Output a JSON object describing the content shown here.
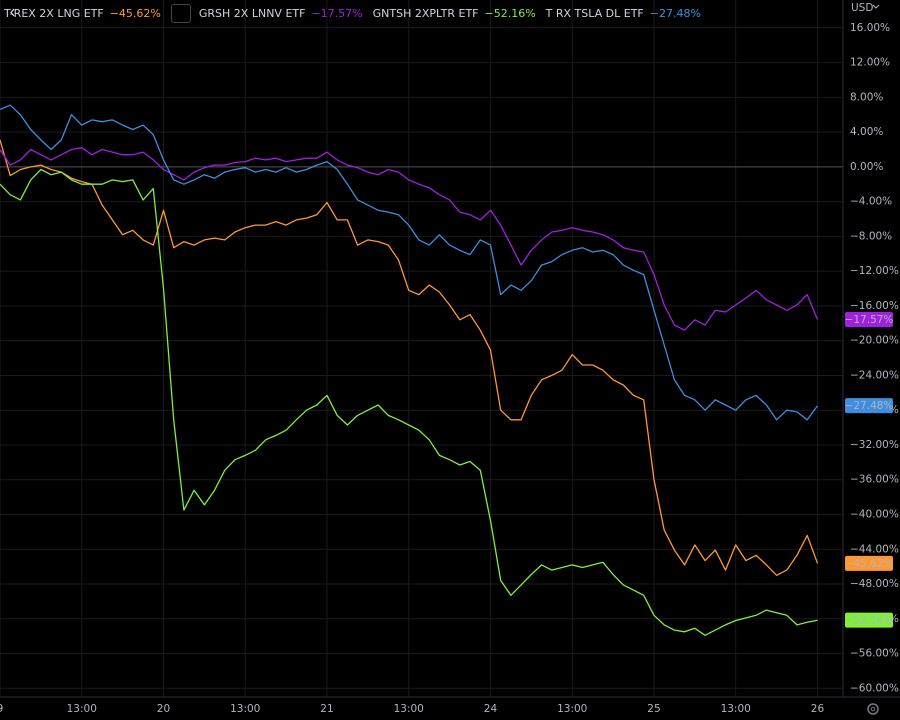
{
  "chart_data": {
    "type": "line",
    "y_axis_label": "USD",
    "grid": true,
    "xlim": [
      0,
      82.5
    ],
    "ylim": [
      -61,
      19.2
    ],
    "xticks": [
      {
        "value": 0,
        "label": "9"
      },
      {
        "value": 8,
        "label": "13:00"
      },
      {
        "value": 16,
        "label": "20"
      },
      {
        "value": 24,
        "label": "13:00"
      },
      {
        "value": 32,
        "label": "21"
      },
      {
        "value": 40,
        "label": "13:00"
      },
      {
        "value": 48,
        "label": "24"
      },
      {
        "value": 56,
        "label": "13:00"
      },
      {
        "value": 64,
        "label": "25"
      },
      {
        "value": 72,
        "label": "13:00"
      },
      {
        "value": 80,
        "label": "26"
      }
    ],
    "yticks": [
      {
        "value": 16,
        "label": "16.00%"
      },
      {
        "value": 12,
        "label": "12.00%"
      },
      {
        "value": 8,
        "label": "8.00%"
      },
      {
        "value": 4,
        "label": "4.00%"
      },
      {
        "value": 0,
        "label": "0.00%"
      },
      {
        "value": -4,
        "label": "−4.00%"
      },
      {
        "value": -8,
        "label": "−8.00%"
      },
      {
        "value": -12,
        "label": "−12.00%"
      },
      {
        "value": -16,
        "label": "−16.00%"
      },
      {
        "value": -20,
        "label": "−20.00%"
      },
      {
        "value": -24,
        "label": "−24.00%"
      },
      {
        "value": -28,
        "label": "−28.00%"
      },
      {
        "value": -32,
        "label": "−32.00%"
      },
      {
        "value": -36,
        "label": "−36.00%"
      },
      {
        "value": -40,
        "label": "−40.00%"
      },
      {
        "value": -44,
        "label": "−44.00%"
      },
      {
        "value": -48,
        "label": "−48.00%"
      },
      {
        "value": -52,
        "label": "−52.00%"
      },
      {
        "value": -56,
        "label": "−56.00%"
      },
      {
        "value": -60,
        "label": "−60.00%"
      }
    ],
    "x": [
      0,
      1,
      2,
      3,
      4,
      5,
      6,
      7,
      8,
      9,
      10,
      11,
      12,
      13,
      14,
      15,
      16,
      17,
      18,
      19,
      20,
      21,
      22,
      23,
      24,
      25,
      26,
      27,
      28,
      29,
      30,
      31,
      32,
      33,
      34,
      35,
      36,
      37,
      38,
      39,
      40,
      41,
      42,
      43,
      44,
      45,
      46,
      47,
      48,
      49,
      50,
      51,
      52,
      53,
      54,
      55,
      56,
      57,
      58,
      59,
      60,
      61,
      62,
      63,
      64,
      65,
      66,
      67,
      68,
      69,
      70,
      71,
      72,
      73,
      74,
      75,
      76,
      77,
      78,
      79,
      80
    ],
    "series": [
      {
        "name": "T-REX 2X LNG ETF",
        "color": "#ff9830",
        "values": [
          3.1,
          -1,
          -0.3,
          0,
          0.2,
          -0.3,
          -0.6,
          -1.3,
          -1.7,
          -2,
          -4.4,
          -6.1,
          -7.8,
          -7.3,
          -8.4,
          -9,
          -5,
          -9.3,
          -8.6,
          -9,
          -8.4,
          -8.2,
          -8.4,
          -7.5,
          -7,
          -6.7,
          -6.7,
          -6.3,
          -6.7,
          -6.1,
          -5.9,
          -5.5,
          -4.1,
          -6.1,
          -6.1,
          -9,
          -8.4,
          -8.6,
          -9,
          -10.7,
          -14.2,
          -14.7,
          -13.6,
          -14.4,
          -15.9,
          -17.6,
          -17,
          -18.8,
          -21.1,
          -28,
          -29.1,
          -29.1,
          -26.3,
          -24.5,
          -24,
          -23.4,
          -21.6,
          -22.8,
          -22.8,
          -23.4,
          -24.5,
          -25.1,
          -26.3,
          -26.8,
          -36,
          -41.8,
          -44.1,
          -45.8,
          -43.5,
          -45.3,
          -44.1,
          -46.4,
          -43.5,
          -45.3,
          -44.7,
          -45.8,
          -47,
          -46.4,
          -44.7,
          -42.4,
          -45.62
        ],
        "value_labels": [
          null,
          null,
          null,
          null,
          null,
          null,
          null,
          null,
          null,
          null,
          null,
          null,
          null,
          null,
          null,
          null,
          null,
          null,
          null,
          null,
          null,
          null,
          null,
          null,
          null,
          null,
          null,
          null,
          null,
          null,
          null,
          null,
          null,
          null,
          null,
          null,
          null,
          null,
          null,
          null,
          null,
          null,
          null,
          null,
          null,
          null,
          null,
          null,
          null,
          null,
          null,
          null,
          null,
          null,
          null,
          null,
          null,
          null,
          null,
          null,
          null,
          null,
          null,
          null,
          null,
          null,
          null,
          null,
          null,
          null,
          null,
          null,
          null,
          null,
          null,
          null,
          null,
          null,
          null,
          null,
          "−45.62%"
        ]
      },
      {
        "name": "GRSH 2X LNNV ETF",
        "color": "#a020e0",
        "values": [
          2,
          0.2,
          0.8,
          2,
          1.4,
          0.8,
          1.4,
          2,
          2.2,
          1.4,
          2,
          1.7,
          1.4,
          1.4,
          1.7,
          0.8,
          -0.3,
          -0.9,
          -1.5,
          -0.6,
          -0.1,
          0.2,
          0.2,
          0.5,
          0.6,
          1,
          0.8,
          1,
          0.6,
          0.8,
          1,
          1,
          1.7,
          0.8,
          0.2,
          -0.1,
          -0.6,
          -0.9,
          -0.3,
          -0.6,
          -1.5,
          -2,
          -2.4,
          -3.2,
          -3.8,
          -5.2,
          -5.5,
          -6.1,
          -5,
          -6.7,
          -9,
          -11.3,
          -9.6,
          -8.4,
          -7.5,
          -7.3,
          -7,
          -7.3,
          -7.5,
          -7.8,
          -8.4,
          -9.3,
          -9.6,
          -9.8,
          -12.4,
          -15.9,
          -18.2,
          -18.8,
          -17.6,
          -18.2,
          -16.5,
          -16.7,
          -15.9,
          -15.1,
          -14.2,
          -15.3,
          -15.9,
          -16.5,
          -15.9,
          -14.7,
          -17.57
        ],
        "value_labels": [
          null,
          null,
          null,
          null,
          null,
          null,
          null,
          null,
          null,
          null,
          null,
          null,
          null,
          null,
          null,
          null,
          null,
          null,
          null,
          null,
          null,
          null,
          null,
          null,
          null,
          null,
          null,
          null,
          null,
          null,
          null,
          null,
          null,
          null,
          null,
          null,
          null,
          null,
          null,
          null,
          null,
          null,
          null,
          null,
          null,
          null,
          null,
          null,
          null,
          null,
          null,
          null,
          null,
          null,
          null,
          null,
          null,
          null,
          null,
          null,
          null,
          null,
          null,
          null,
          null,
          null,
          null,
          null,
          null,
          null,
          null,
          null,
          null,
          null,
          null,
          null,
          null,
          null,
          null,
          null,
          "−17.57%"
        ]
      },
      {
        "name": "GNTSH 2XPLTR ETF",
        "color": "#7ff03c",
        "values": [
          -2,
          -3.2,
          -3.8,
          -1.5,
          -0.3,
          -0.9,
          -0.6,
          -1.5,
          -2,
          -2,
          -2,
          -1.5,
          -1.7,
          -1.5,
          -3.8,
          -2.5,
          -14,
          -29.1,
          -39.5,
          -37.2,
          -38.9,
          -37.2,
          -34.9,
          -33.7,
          -33.2,
          -32.6,
          -31.4,
          -30.9,
          -30.3,
          -29.1,
          -28,
          -27.4,
          -26.3,
          -28.6,
          -29.7,
          -28.6,
          -28,
          -27.4,
          -28.6,
          -29.1,
          -29.7,
          -30.3,
          -31.4,
          -33.2,
          -33.7,
          -34.3,
          -33.9,
          -34.9,
          -40.7,
          -47.6,
          -49.3,
          -48.1,
          -46.9,
          -45.8,
          -46.4,
          -46.1,
          -45.8,
          -46.1,
          -45.8,
          -45.5,
          -46.9,
          -48.1,
          -48.7,
          -49.3,
          -51.6,
          -52.7,
          -53.3,
          -53.5,
          -53.1,
          -53.9,
          -53.3,
          -52.7,
          -52.2,
          -51.9,
          -51.6,
          -51,
          -51.3,
          -51.6,
          -52.7,
          -52.4,
          -52.16
        ],
        "value_labels": [
          null,
          null,
          null,
          null,
          null,
          null,
          null,
          null,
          null,
          null,
          null,
          null,
          null,
          null,
          null,
          null,
          null,
          null,
          null,
          null,
          null,
          null,
          null,
          null,
          null,
          null,
          null,
          null,
          null,
          null,
          null,
          null,
          null,
          null,
          null,
          null,
          null,
          null,
          null,
          null,
          null,
          null,
          null,
          null,
          null,
          null,
          null,
          null,
          null,
          null,
          null,
          null,
          null,
          null,
          null,
          null,
          null,
          null,
          null,
          null,
          null,
          null,
          null,
          null,
          null,
          null,
          null,
          null,
          null,
          null,
          null,
          null,
          null,
          null,
          null,
          null,
          null,
          null,
          null,
          null,
          "−52.16%"
        ]
      },
      {
        "name": "T RX TSLA DL ETF",
        "color": "#3d8ee0",
        "values": [
          6.6,
          7.1,
          6,
          4.3,
          3.1,
          2,
          3.1,
          6,
          4.8,
          5.4,
          5.2,
          5.4,
          4.8,
          4.3,
          4.8,
          3.7,
          0.8,
          -1.5,
          -2,
          -1.5,
          -0.9,
          -1.3,
          -0.6,
          -0.3,
          -0.1,
          -0.6,
          -0.3,
          -0.6,
          -0.1,
          -0.6,
          -0.3,
          0.2,
          0.6,
          -0.3,
          -2,
          -3.8,
          -4.4,
          -5,
          -5.2,
          -5.5,
          -6.7,
          -8.4,
          -9,
          -7.8,
          -9,
          -9.6,
          -10.1,
          -8.4,
          -9,
          -14.7,
          -13.6,
          -14.2,
          -13.1,
          -11.3,
          -10.9,
          -10.1,
          -9.6,
          -9.3,
          -9.8,
          -9.6,
          -10.1,
          -11.3,
          -11.9,
          -12.4,
          -16.5,
          -20.5,
          -24.5,
          -26.3,
          -26.8,
          -28,
          -26.8,
          -27.4,
          -28,
          -26.8,
          -26.3,
          -27.4,
          -29.1,
          -28,
          -28.2,
          -29.1,
          -27.48
        ],
        "value_labels": [
          null,
          null,
          null,
          null,
          null,
          null,
          null,
          null,
          null,
          null,
          null,
          null,
          null,
          null,
          null,
          null,
          null,
          null,
          null,
          null,
          null,
          null,
          null,
          null,
          null,
          null,
          null,
          null,
          null,
          null,
          null,
          null,
          null,
          null,
          null,
          null,
          null,
          null,
          null,
          null,
          null,
          null,
          null,
          null,
          null,
          null,
          null,
          null,
          null,
          null,
          null,
          null,
          null,
          null,
          null,
          null,
          null,
          null,
          null,
          null,
          null,
          null,
          null,
          null,
          null,
          null,
          null,
          null,
          null,
          null,
          null,
          null,
          null,
          null,
          null,
          null,
          null,
          null,
          null,
          null,
          "−27.48%"
        ]
      }
    ]
  }
}
